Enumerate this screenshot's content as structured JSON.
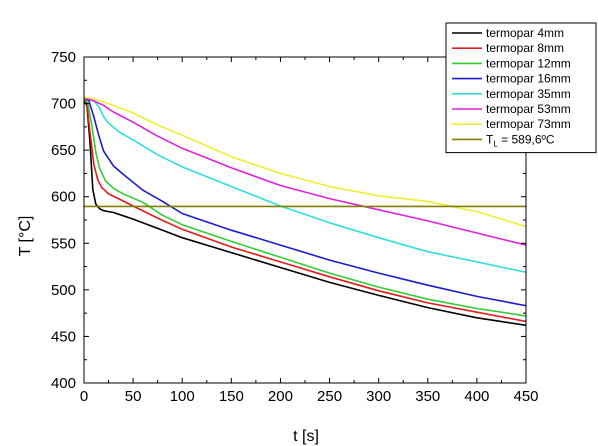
{
  "chart_data": {
    "type": "line",
    "xlabel": "t [s]",
    "ylabel": "T [°C]",
    "xlim": [
      0,
      450
    ],
    "ylim": [
      400,
      750
    ],
    "xticks": [
      0,
      50,
      100,
      150,
      200,
      250,
      300,
      350,
      400,
      450
    ],
    "yticks": [
      400,
      450,
      500,
      550,
      600,
      650,
      700,
      750
    ],
    "grid": false,
    "legend_position": "top-right",
    "series": [
      {
        "name": "termopar 4mm",
        "color": "#000000",
        "x": [
          0,
          3,
          6,
          9,
          12,
          16,
          20,
          30,
          50,
          75,
          100,
          150,
          200,
          250,
          300,
          350,
          400,
          450
        ],
        "y": [
          703,
          698,
          660,
          608,
          592,
          587,
          585,
          583,
          576,
          566,
          556,
          540,
          524,
          508,
          494,
          481,
          470,
          462
        ]
      },
      {
        "name": "termopar 8mm",
        "color": "#e41a1c",
        "x": [
          0,
          3,
          6,
          10,
          14,
          18,
          25,
          35,
          50,
          75,
          100,
          150,
          200,
          250,
          300,
          350,
          400,
          450
        ],
        "y": [
          705,
          700,
          670,
          635,
          618,
          610,
          603,
          598,
          590,
          577,
          565,
          546,
          530,
          514,
          499,
          486,
          476,
          466
        ]
      },
      {
        "name": "termopar 12mm",
        "color": "#33cc33",
        "x": [
          0,
          4,
          8,
          12,
          16,
          22,
          30,
          40,
          60,
          80,
          100,
          150,
          200,
          250,
          300,
          350,
          400,
          450
        ],
        "y": [
          706,
          700,
          676,
          648,
          630,
          617,
          609,
          603,
          594,
          580,
          570,
          552,
          535,
          518,
          503,
          490,
          480,
          472
        ]
      },
      {
        "name": "termopar 16mm",
        "color": "#1c1cd0",
        "x": [
          0,
          5,
          10,
          15,
          20,
          30,
          40,
          60,
          80,
          100,
          150,
          200,
          250,
          300,
          350,
          400,
          450
        ],
        "y": [
          706,
          703,
          686,
          666,
          649,
          633,
          624,
          607,
          595,
          582,
          564,
          548,
          532,
          518,
          505,
          493,
          483
        ]
      },
      {
        "name": "termopar 35mm",
        "color": "#33dddd",
        "x": [
          0,
          10,
          15,
          20,
          25,
          35,
          50,
          75,
          100,
          150,
          200,
          250,
          300,
          350,
          400,
          450
        ],
        "y": [
          706,
          703,
          697,
          686,
          679,
          670,
          661,
          645,
          632,
          611,
          590,
          572,
          556,
          541,
          530,
          519
        ]
      },
      {
        "name": "termopar 53mm",
        "color": "#dd22dd",
        "x": [
          0,
          10,
          20,
          30,
          50,
          75,
          100,
          150,
          200,
          250,
          300,
          350,
          400,
          450
        ],
        "y": [
          706,
          703,
          698,
          691,
          680,
          665,
          652,
          631,
          612,
          598,
          586,
          574,
          561,
          548
        ]
      },
      {
        "name": "termopar 73mm",
        "color": "#eeee33",
        "x": [
          0,
          10,
          25,
          50,
          75,
          100,
          150,
          200,
          250,
          300,
          350,
          400,
          450
        ],
        "y": [
          707,
          705,
          700,
          690,
          677,
          666,
          643,
          625,
          611,
          601,
          595,
          584,
          568
        ]
      }
    ],
    "hlines": [
      {
        "name_main": "T",
        "name_sub": "L",
        "name_rest": " = 589,6ºC",
        "value": 589.6,
        "color": "#808000"
      }
    ]
  }
}
